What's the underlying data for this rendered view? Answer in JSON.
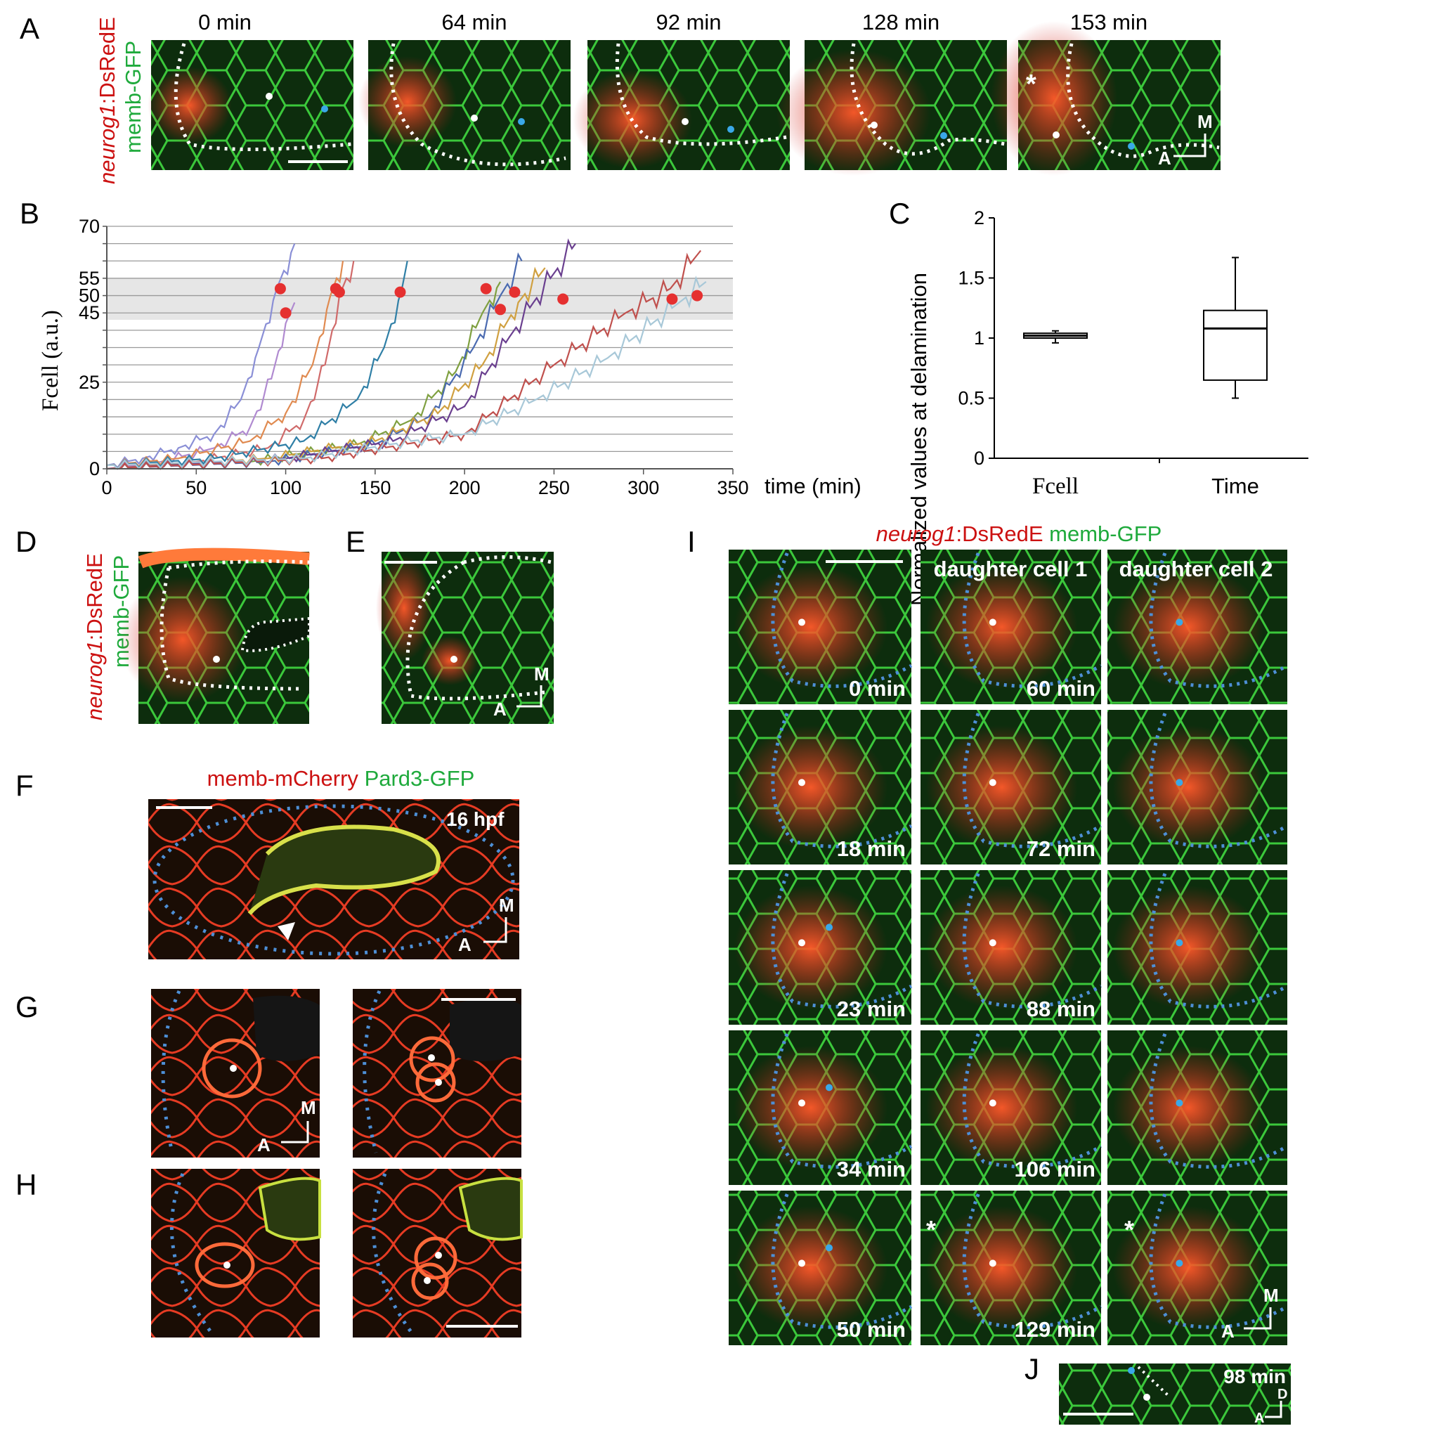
{
  "panel_letters": [
    "A",
    "B",
    "C",
    "D",
    "E",
    "F",
    "G",
    "H",
    "I",
    "J"
  ],
  "panelA": {
    "times": [
      "0 min",
      "64 min",
      "92 min",
      "128 min",
      "153 min"
    ],
    "label_red": "neurog1",
    "label_red_suffix": ":DsRedE",
    "label_green": "memb-GFP",
    "axis_M": "M",
    "axis_A": "A",
    "asterisk": "*"
  },
  "panelD": {
    "label_red": "neurog1",
    "label_red_suffix": ":DsRedE",
    "label_green": "memb-GFP"
  },
  "panelE": {
    "axis_M": "M",
    "axis_A": "A"
  },
  "panelF": {
    "title_red": "memb-mCherry",
    "title_green": "Pard3-GFP",
    "stage": "16 hpf",
    "axis_M": "M",
    "axis_A": "A"
  },
  "panelG": {
    "axis_M": "M",
    "axis_A": "A"
  },
  "panelI": {
    "title_red": "neurog1",
    "title_red_suffix": ":DsRedE",
    "title_green": "memb-GFP",
    "col_headers": [
      "daughter cell 1",
      "daughter cell 2"
    ],
    "col1_times": [
      "0 min",
      "18 min",
      "23 min",
      "34 min",
      "50 min"
    ],
    "col2_times": [
      "60 min",
      "72 min",
      "88 min",
      "106 min",
      "129 min"
    ],
    "axis_M": "M",
    "axis_A": "A",
    "asterisk": "*"
  },
  "panelJ": {
    "time": "98 min",
    "axis_D": "D",
    "axis_A": "A"
  },
  "colors": {
    "red_label": "#cc1111",
    "green_label": "#1faa3c",
    "micro_bg": "#0c2a0c",
    "dots_blue": "#3aa8e8",
    "outline_blue": "#4d8fd6",
    "trace_red_dot": "#e53030",
    "band": "#e6e6e6"
  },
  "chart_data": [
    {
      "type": "line",
      "panel": "B",
      "xlabel": "time (min)",
      "ylabel": "Fcell (a.u.)",
      "xlim": [
        0,
        350
      ],
      "ylim": [
        0,
        70
      ],
      "xticks": [
        0,
        50,
        100,
        150,
        200,
        250,
        300,
        350
      ],
      "yticks": [
        0,
        25,
        45,
        50,
        55,
        70
      ],
      "grid": true,
      "shaded_band": [
        43,
        55
      ],
      "series": [
        {
          "color": "#8a8fd6",
          "x": [
            0,
            20,
            40,
            60,
            75,
            85,
            95,
            105
          ],
          "y": [
            1,
            3,
            6,
            10,
            20,
            35,
            52,
            65
          ]
        },
        {
          "color": "#b08ad0",
          "x": [
            0,
            30,
            60,
            80,
            92,
            100,
            105
          ],
          "y": [
            0,
            2,
            6,
            12,
            26,
            42,
            48
          ]
        },
        {
          "color": "#e08a50",
          "x": [
            0,
            40,
            80,
            100,
            115,
            125,
            132
          ],
          "y": [
            1,
            3,
            8,
            16,
            30,
            50,
            60
          ]
        },
        {
          "color": "#d06a6a",
          "x": [
            0,
            50,
            90,
            110,
            122,
            130,
            138
          ],
          "y": [
            0,
            2,
            6,
            14,
            30,
            50,
            60
          ]
        },
        {
          "color": "#2f7fa6",
          "x": [
            0,
            60,
            110,
            140,
            155,
            165,
            168
          ],
          "y": [
            1,
            3,
            8,
            20,
            35,
            52,
            60
          ]
        },
        {
          "color": "#7fa040",
          "x": [
            0,
            80,
            140,
            170,
            195,
            210,
            220
          ],
          "y": [
            0,
            2,
            7,
            14,
            28,
            45,
            54
          ]
        },
        {
          "color": "#4a6ab0",
          "x": [
            0,
            90,
            150,
            180,
            205,
            220,
            232
          ],
          "y": [
            0,
            2,
            7,
            15,
            35,
            50,
            60
          ]
        },
        {
          "color": "#d0a040",
          "x": [
            0,
            90,
            150,
            185,
            210,
            230,
            245
          ],
          "y": [
            0,
            3,
            8,
            16,
            30,
            48,
            58
          ]
        },
        {
          "color": "#6a3f8f",
          "x": [
            0,
            100,
            160,
            200,
            225,
            248,
            262
          ],
          "y": [
            0,
            3,
            8,
            18,
            38,
            55,
            65
          ]
        },
        {
          "color": "#c0504d",
          "x": [
            0,
            120,
            200,
            250,
            290,
            315,
            332
          ],
          "y": [
            0,
            3,
            10,
            30,
            45,
            52,
            63
          ]
        },
        {
          "color": "#a8c8d8",
          "x": [
            0,
            110,
            170,
            200,
            240,
            280,
            320,
            335
          ],
          "y": [
            1,
            3,
            8,
            10,
            20,
            32,
            48,
            54
          ]
        }
      ],
      "delamination_points": [
        {
          "x": 97,
          "y": 52
        },
        {
          "x": 100,
          "y": 45
        },
        {
          "x": 128,
          "y": 52
        },
        {
          "x": 130,
          "y": 51
        },
        {
          "x": 164,
          "y": 51
        },
        {
          "x": 212,
          "y": 52
        },
        {
          "x": 220,
          "y": 46
        },
        {
          "x": 228,
          "y": 51
        },
        {
          "x": 255,
          "y": 49
        },
        {
          "x": 316,
          "y": 49
        },
        {
          "x": 330,
          "y": 50
        }
      ]
    },
    {
      "type": "box",
      "panel": "C",
      "ylabel": "Normalized values at delamination",
      "ylim": [
        0,
        2
      ],
      "yticks": [
        0,
        0.5,
        1,
        1.5,
        2
      ],
      "categories": [
        "Fcell",
        "Time"
      ],
      "boxes": [
        {
          "category": "Fcell",
          "min": 0.96,
          "q1": 1.0,
          "median": 1.02,
          "q3": 1.04,
          "max": 1.06
        },
        {
          "category": "Time",
          "min": 0.5,
          "q1": 0.65,
          "median": 1.08,
          "q3": 1.23,
          "max": 1.67
        }
      ]
    }
  ]
}
